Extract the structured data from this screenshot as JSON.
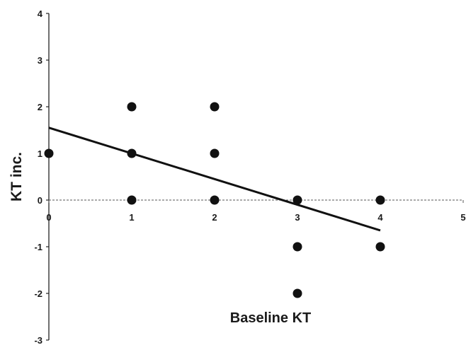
{
  "chart_data": {
    "type": "scatter",
    "title": "",
    "xlabel": "Baseline KT",
    "ylabel": "KT inc.",
    "xlim": [
      0,
      5
    ],
    "ylim": [
      -3,
      4
    ],
    "x_ticks": [
      "0",
      "1",
      "2",
      "3",
      "4",
      "5"
    ],
    "y_ticks": [
      "4",
      "3",
      "2",
      "1",
      "0",
      "-1",
      "-2",
      "-3"
    ],
    "points": [
      {
        "x": 0,
        "y": 1
      },
      {
        "x": 1,
        "y": 2
      },
      {
        "x": 1,
        "y": 1
      },
      {
        "x": 1,
        "y": 0
      },
      {
        "x": 2,
        "y": 2
      },
      {
        "x": 2,
        "y": 1
      },
      {
        "x": 2,
        "y": 0
      },
      {
        "x": 3,
        "y": 0
      },
      {
        "x": 3,
        "y": -1
      },
      {
        "x": 3,
        "y": -2
      },
      {
        "x": 4,
        "y": 0
      },
      {
        "x": 4,
        "y": -1
      }
    ],
    "trendline": {
      "x": [
        0,
        4
      ],
      "y": [
        1.55,
        -0.65
      ]
    },
    "grid": false,
    "legend": "none",
    "colors": {
      "marker": "#111111",
      "line": "#111111",
      "axis": "#222222"
    }
  }
}
